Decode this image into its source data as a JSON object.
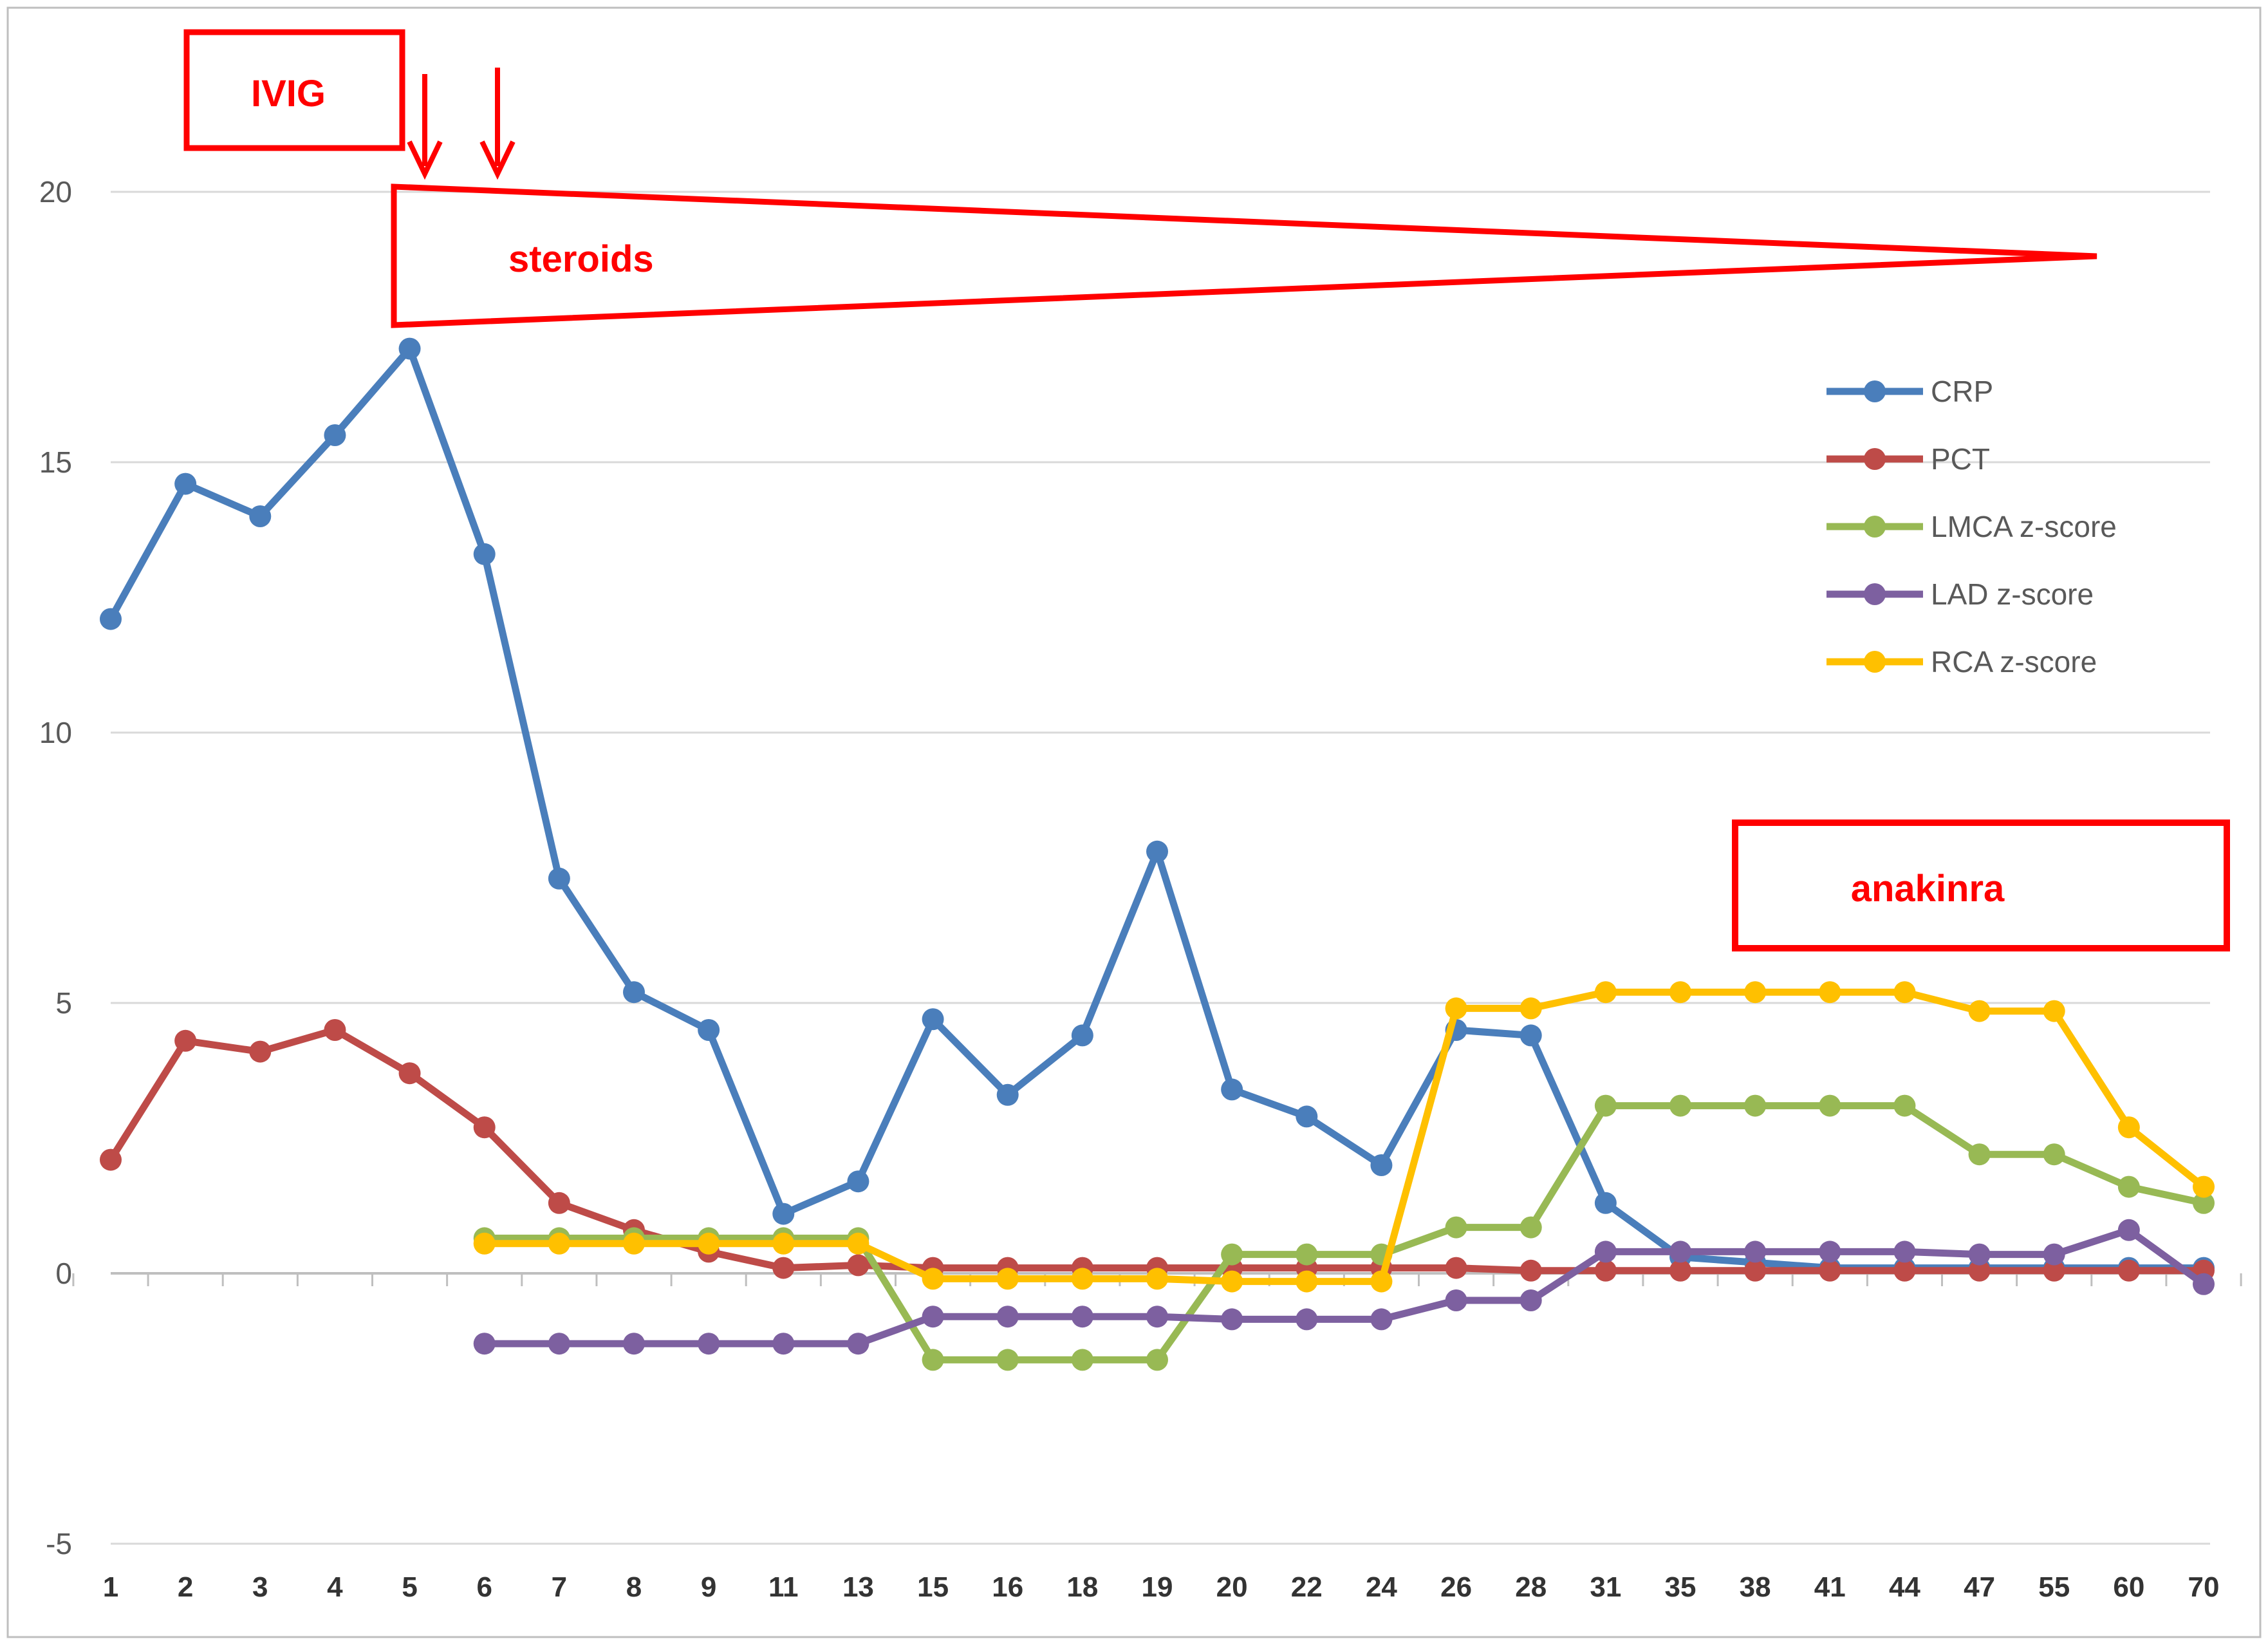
{
  "chart_data": {
    "type": "line",
    "categories": [
      "1",
      "2",
      "3",
      "4",
      "5",
      "6",
      "7",
      "8",
      "9",
      "11",
      "13",
      "15",
      "16",
      "18",
      "19",
      "20",
      "22",
      "24",
      "26",
      "28",
      "31",
      "35",
      "38",
      "41",
      "44",
      "47",
      "55",
      "60",
      "70"
    ],
    "ylim": [
      -5,
      22
    ],
    "yticks": [
      -5,
      0,
      5,
      10,
      15,
      20
    ],
    "grid": true,
    "legend_position": "right",
    "series": [
      {
        "name": "CRP",
        "color": "#4a7ebb",
        "values": [
          12.1,
          14.6,
          14.0,
          15.5,
          17.1,
          13.3,
          7.3,
          5.2,
          4.5,
          1.1,
          1.7,
          4.7,
          3.3,
          4.4,
          7.8,
          3.4,
          2.9,
          2.0,
          4.5,
          4.4,
          1.3,
          0.3,
          0.2,
          0.1,
          0.1,
          0.1,
          0.1,
          0.1,
          0.1
        ]
      },
      {
        "name": "PCT",
        "color": "#be4b48",
        "values": [
          2.1,
          4.3,
          4.1,
          4.5,
          3.7,
          2.7,
          1.3,
          0.8,
          0.4,
          0.1,
          0.15,
          0.1,
          0.1,
          0.1,
          0.1,
          0.1,
          0.1,
          0.1,
          0.1,
          0.05,
          0.05,
          0.05,
          0.05,
          0.05,
          0.05,
          0.05,
          0.05,
          0.05,
          0.05
        ]
      },
      {
        "name": "LMCA z-score",
        "color": "#98b954",
        "values": [
          null,
          null,
          null,
          null,
          null,
          0.65,
          0.65,
          0.65,
          0.65,
          0.65,
          0.65,
          -1.6,
          -1.6,
          -1.6,
          -1.6,
          0.35,
          0.35,
          0.35,
          0.85,
          0.85,
          3.1,
          3.1,
          3.1,
          3.1,
          3.1,
          2.2,
          2.2,
          1.6,
          1.3
        ]
      },
      {
        "name": "LAD z-score",
        "color": "#7d60a0",
        "values": [
          null,
          null,
          null,
          null,
          null,
          -1.3,
          -1.3,
          -1.3,
          -1.3,
          -1.3,
          -1.3,
          -0.8,
          -0.8,
          -0.8,
          -0.8,
          -0.85,
          -0.85,
          -0.85,
          -0.5,
          -0.5,
          0.4,
          0.4,
          0.4,
          0.4,
          0.4,
          0.35,
          0.35,
          0.8,
          -0.2
        ]
      },
      {
        "name": "RCA z-score",
        "color": "#ffc000",
        "values": [
          null,
          null,
          null,
          null,
          null,
          0.55,
          0.55,
          0.55,
          0.55,
          0.55,
          0.55,
          -0.1,
          -0.1,
          -0.1,
          -0.1,
          -0.15,
          -0.15,
          -0.15,
          4.9,
          4.9,
          5.2,
          5.2,
          5.2,
          5.2,
          5.2,
          4.85,
          4.85,
          2.7,
          1.6
        ]
      }
    ],
    "annotations": {
      "ivig": "IVIG",
      "steroids": "steroids",
      "anakinra": "anakinra"
    }
  }
}
